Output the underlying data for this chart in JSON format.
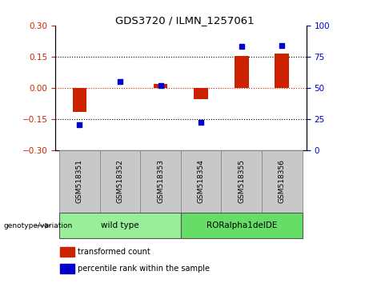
{
  "title": "GDS3720 / ILMN_1257061",
  "samples": [
    "GSM518351",
    "GSM518352",
    "GSM518353",
    "GSM518354",
    "GSM518355",
    "GSM518356"
  ],
  "bar_values": [
    -0.115,
    0.0,
    0.02,
    -0.055,
    0.155,
    0.165
  ],
  "scatter_values": [
    20,
    55,
    52,
    22,
    83,
    84
  ],
  "ylim_left": [
    -0.3,
    0.3
  ],
  "ylim_right": [
    0,
    100
  ],
  "yticks_left": [
    -0.3,
    -0.15,
    0,
    0.15,
    0.3
  ],
  "yticks_right": [
    0,
    25,
    50,
    75,
    100
  ],
  "bar_color": "#CC2200",
  "scatter_color": "#0000CC",
  "bar_width": 0.35,
  "label_row_bg": "#C8C8C8",
  "wt_color": "#99EE99",
  "ror_color": "#66DD66",
  "legend_bar_label": "transformed count",
  "legend_scatter_label": "percentile rank within the sample",
  "genotype_label": "genotype/variation"
}
